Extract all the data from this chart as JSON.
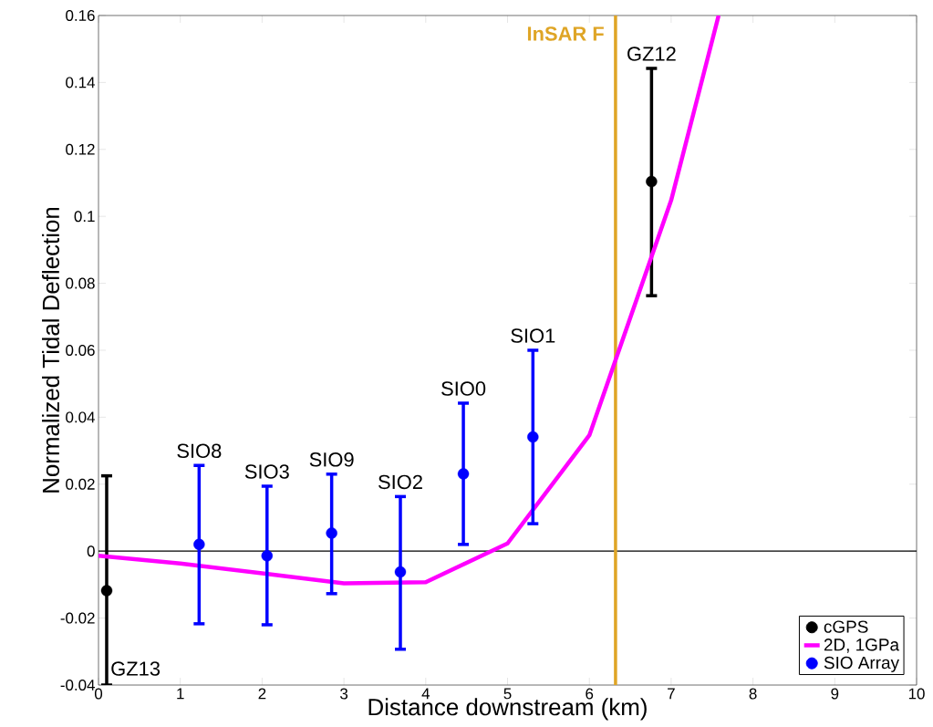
{
  "chart_data": {
    "type": "scatter",
    "xlabel": "Distance downstream (km)",
    "ylabel": "Normalized Tidal Deflection",
    "xlim": [
      0,
      10
    ],
    "ylim": [
      -0.04,
      0.16
    ],
    "xticks": [
      0,
      1,
      2,
      3,
      4,
      5,
      6,
      7,
      8,
      9,
      10
    ],
    "yticks": [
      -0.04,
      -0.02,
      0,
      0.02,
      0.04,
      0.06,
      0.08,
      0.1,
      0.12,
      0.14,
      0.16
    ],
    "legend": "bottom right",
    "marker": "circle",
    "series": [
      {
        "name": "cGPS",
        "color": "#000000",
        "x": [
          0.1,
          6.76
        ],
        "values": [
          -0.0118,
          0.1104
        ],
        "errors": [
          [
            -0.04,
            0.0225
          ],
          [
            0.0763,
            0.1442
          ]
        ]
      },
      {
        "name": "2D, 1GPa",
        "color": "#ff00ff",
        "type": "line",
        "marker": "none",
        "x": [
          0,
          1,
          2,
          3,
          4,
          5,
          6,
          7,
          7.58
        ],
        "values": [
          -0.0014,
          -0.0037,
          -0.0066,
          -0.0096,
          -0.0093,
          0.0023,
          0.0346,
          0.1048,
          0.16
        ]
      },
      {
        "name": "SIO Array",
        "color": "#0000ff",
        "x": [
          1.23,
          2.06,
          2.85,
          3.69,
          4.46,
          5.31
        ],
        "values": [
          0.002,
          -0.0014,
          0.0054,
          -0.0062,
          0.0231,
          0.0341
        ],
        "errors": [
          [
            -0.0217,
            0.0256
          ],
          [
            -0.022,
            0.0194
          ],
          [
            -0.0127,
            0.023
          ],
          [
            -0.0293,
            0.0163
          ],
          [
            0.002,
            0.0442
          ],
          [
            0.0082,
            0.06
          ]
        ]
      }
    ],
    "ref_lines": [
      {
        "axis": "y",
        "value": 0,
        "color": "#000000"
      },
      {
        "axis": "x",
        "value": 6.32,
        "label": "InSAR F",
        "color": "#dfa526"
      }
    ],
    "annotations": [
      {
        "text": "GZ13",
        "x": 0.1,
        "y": -0.04
      },
      {
        "text": "SIO8",
        "x": 1.23,
        "y": 0.0256
      },
      {
        "text": "SIO3",
        "x": 2.06,
        "y": 0.0194
      },
      {
        "text": "SIO9",
        "x": 2.85,
        "y": 0.023
      },
      {
        "text": "SIO2",
        "x": 3.69,
        "y": 0.0163
      },
      {
        "text": "SIO0",
        "x": 4.46,
        "y": 0.0442
      },
      {
        "text": "SIO1",
        "x": 5.31,
        "y": 0.06
      },
      {
        "text": "GZ12",
        "x": 6.76,
        "y": 0.1442
      }
    ]
  }
}
